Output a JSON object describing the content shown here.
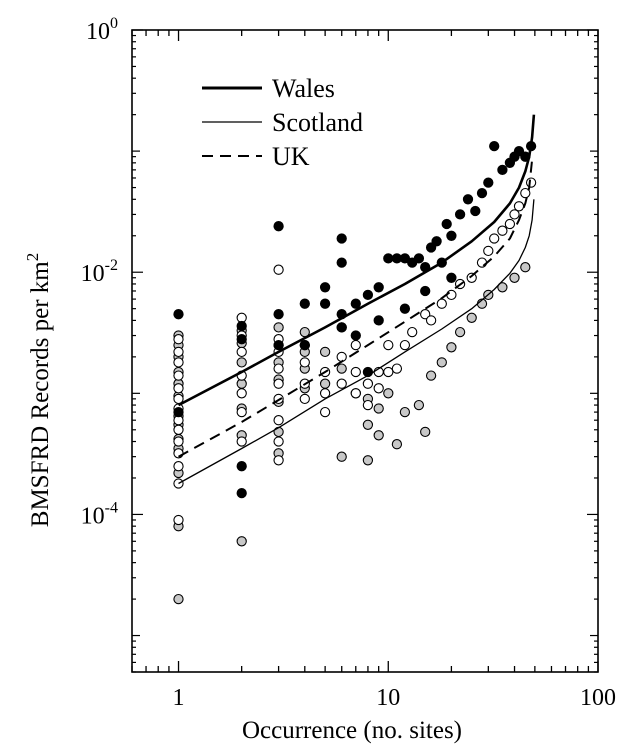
{
  "chart_data": {
    "type": "scatter",
    "xlabel": "Occurrence (no. sites)",
    "ylabel": "BMSFRD Records per km",
    "ylabel_sup": "2",
    "x_scale": "log",
    "y_scale": "log",
    "xlim": [
      0.6,
      100
    ],
    "ylim": [
      5e-06,
      1
    ],
    "x_ticks": [
      {
        "value": 1,
        "label": "1"
      },
      {
        "value": 10,
        "label": "10"
      },
      {
        "value": 100,
        "label": "100"
      }
    ],
    "y_ticks": [
      {
        "value": 0.0001,
        "base": "10",
        "exp": "-4"
      },
      {
        "value": 0.01,
        "base": "10",
        "exp": "-2"
      },
      {
        "value": 1,
        "base": "10",
        "exp": "0"
      }
    ],
    "legend": {
      "placement": "top-left",
      "entries": [
        {
          "label": "Wales",
          "style": "thick-solid"
        },
        {
          "label": "Scotland",
          "style": "thin-solid"
        },
        {
          "label": "UK",
          "style": "dashed"
        }
      ]
    },
    "lines": [
      {
        "name": "Wales",
        "style": "thick-solid",
        "x": [
          1,
          2,
          3,
          5,
          8,
          12,
          18,
          25,
          32,
          38,
          42,
          45,
          47,
          48.5,
          49.5
        ],
        "y": [
          0.0008,
          0.0015,
          0.0022,
          0.0035,
          0.0055,
          0.008,
          0.012,
          0.018,
          0.026,
          0.037,
          0.05,
          0.068,
          0.09,
          0.13,
          0.2
        ]
      },
      {
        "name": "UK",
        "style": "dashed",
        "x": [
          1,
          2,
          3,
          5,
          8,
          12,
          18,
          25,
          32,
          38,
          42,
          45,
          47,
          48.5
        ],
        "y": [
          0.0003,
          0.00058,
          0.00088,
          0.0015,
          0.0025,
          0.0039,
          0.0061,
          0.0093,
          0.0135,
          0.019,
          0.027,
          0.037,
          0.05,
          0.085
        ]
      },
      {
        "name": "Scotland",
        "style": "thin-solid",
        "x": [
          1,
          2,
          3,
          5,
          8,
          12,
          18,
          25,
          32,
          38,
          42,
          45,
          47,
          48.5,
          49.5
        ],
        "y": [
          0.00018,
          0.00035,
          0.00052,
          0.0009,
          0.0014,
          0.0022,
          0.0034,
          0.005,
          0.0072,
          0.0098,
          0.0125,
          0.016,
          0.02,
          0.027,
          0.04
        ]
      }
    ],
    "series": [
      {
        "name": "Wales",
        "marker": "filled",
        "x": [
          1,
          1,
          2,
          2,
          2,
          2,
          3,
          3,
          3,
          4,
          4,
          5,
          5,
          6,
          6,
          6,
          6,
          7,
          7,
          8,
          8,
          9,
          9,
          10,
          11,
          12,
          13,
          14,
          15,
          16,
          17,
          18,
          19,
          20,
          22,
          24,
          26,
          28,
          30,
          32,
          35,
          38,
          40,
          42,
          45,
          48,
          12,
          15,
          20
        ],
        "y": [
          0.0045,
          0.0007,
          0.0036,
          0.0028,
          0.00025,
          0.00015,
          0.024,
          0.0045,
          0.0025,
          0.0055,
          0.0025,
          0.0075,
          0.0055,
          0.019,
          0.012,
          0.0045,
          0.0035,
          0.0055,
          0.003,
          0.0065,
          0.0015,
          0.0075,
          0.004,
          0.013,
          0.013,
          0.013,
          0.012,
          0.013,
          0.011,
          0.016,
          0.018,
          0.012,
          0.025,
          0.02,
          0.03,
          0.04,
          0.032,
          0.045,
          0.055,
          0.11,
          0.07,
          0.08,
          0.09,
          0.1,
          0.09,
          0.11,
          0.005,
          0.007,
          0.009
        ]
      },
      {
        "name": "Scotland",
        "marker": "open",
        "x": [
          1,
          1,
          1,
          1,
          1,
          1,
          1,
          1,
          1,
          1,
          1,
          1,
          1,
          1,
          2,
          2,
          2,
          2,
          2,
          2,
          2,
          3,
          3,
          3,
          3,
          3,
          3,
          3,
          3,
          3,
          4,
          4,
          4,
          4,
          5,
          5,
          5,
          6,
          6,
          6,
          7,
          7,
          7,
          8,
          8,
          9,
          9,
          10,
          10,
          11,
          12,
          13,
          15,
          16,
          18,
          20,
          22,
          25,
          28,
          30,
          32,
          35,
          38,
          40,
          42,
          45,
          48
        ],
        "y": [
          0.0028,
          0.0022,
          0.0018,
          0.0014,
          0.0011,
          0.0009,
          0.00075,
          0.0006,
          0.0005,
          0.0004,
          0.00032,
          0.00025,
          0.00018,
          9e-05,
          0.0042,
          0.003,
          0.0022,
          0.0014,
          0.001,
          0.0007,
          0.0004,
          0.0028,
          0.0022,
          0.0016,
          0.0012,
          0.0009,
          0.0006,
          0.0004,
          0.00028,
          0.0105,
          0.0025,
          0.0018,
          0.0012,
          0.0009,
          0.0015,
          0.001,
          0.0007,
          0.0035,
          0.002,
          0.0012,
          0.0025,
          0.0015,
          0.001,
          0.0012,
          0.0008,
          0.0015,
          0.0011,
          0.0025,
          0.0015,
          0.0016,
          0.0025,
          0.0032,
          0.0045,
          0.004,
          0.0055,
          0.0065,
          0.008,
          0.009,
          0.012,
          0.015,
          0.019,
          0.022,
          0.025,
          0.03,
          0.035,
          0.045,
          0.055
        ]
      },
      {
        "name": "UK",
        "marker": "grey",
        "x": [
          1,
          1,
          1,
          1,
          1,
          1,
          1,
          1,
          1,
          1,
          1,
          1,
          1,
          2,
          2,
          2,
          2,
          2,
          2,
          2,
          3,
          3,
          3,
          3,
          3,
          3,
          3,
          4,
          4,
          4,
          4,
          5,
          5,
          6,
          6,
          7,
          8,
          8,
          8,
          9,
          9,
          10,
          11,
          12,
          14,
          15,
          16,
          18,
          20,
          22,
          25,
          28,
          30,
          35,
          40,
          45
        ],
        "y": [
          0.003,
          0.0025,
          0.002,
          0.0015,
          0.0012,
          0.00095,
          0.00065,
          0.00055,
          0.00042,
          0.00035,
          0.00022,
          8e-05,
          2e-05,
          0.0033,
          0.0026,
          0.0018,
          0.0012,
          0.00075,
          0.00045,
          6e-05,
          0.0035,
          0.0025,
          0.0018,
          0.0013,
          0.00085,
          0.00048,
          0.00032,
          0.0032,
          0.0022,
          0.0016,
          0.0011,
          0.0022,
          0.0012,
          0.0016,
          0.0003,
          0.001,
          0.0009,
          0.00055,
          0.00028,
          0.00075,
          0.00045,
          0.001,
          0.00038,
          0.0007,
          0.0008,
          0.00048,
          0.0014,
          0.0018,
          0.0024,
          0.0032,
          0.0042,
          0.0055,
          0.0065,
          0.0075,
          0.009,
          0.011
        ]
      }
    ]
  }
}
